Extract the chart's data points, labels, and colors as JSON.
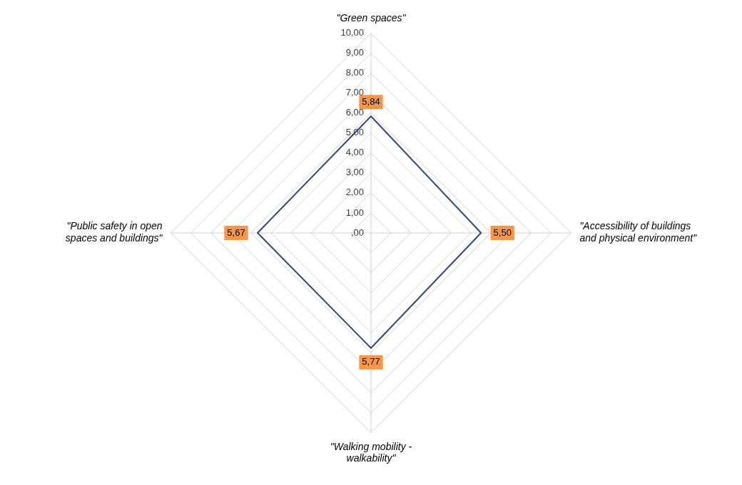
{
  "chart_data": {
    "type": "radar",
    "categories": [
      "\"Green spaces\"",
      "\"Accessibility of buildings and physical environment\"",
      "\"Walking mobility - walkability\"",
      "\"Public safety in open spaces and buildings\""
    ],
    "series": [
      {
        "color": "#2f4b7c",
        "values": [
          5.84,
          5.5,
          5.77,
          5.67
        ],
        "value_labels": [
          "5,84",
          "5,50",
          "5,77",
          "5,67"
        ]
      }
    ],
    "ylim": [
      0,
      10
    ],
    "yticks": [
      {
        "value": 0,
        "label": ",00"
      },
      {
        "value": 1,
        "label": "1,00"
      },
      {
        "value": 2,
        "label": "2,00"
      },
      {
        "value": 3,
        "label": "3,00"
      },
      {
        "value": 4,
        "label": "4,00"
      },
      {
        "value": 5,
        "label": "5,00"
      },
      {
        "value": 6,
        "label": "6,00"
      },
      {
        "value": 7,
        "label": "7,00"
      },
      {
        "value": 8,
        "label": "8,00"
      },
      {
        "value": 9,
        "label": "9,00"
      },
      {
        "value": 10,
        "label": "10,00"
      }
    ],
    "grid": true,
    "legend": false,
    "marker": "none"
  }
}
